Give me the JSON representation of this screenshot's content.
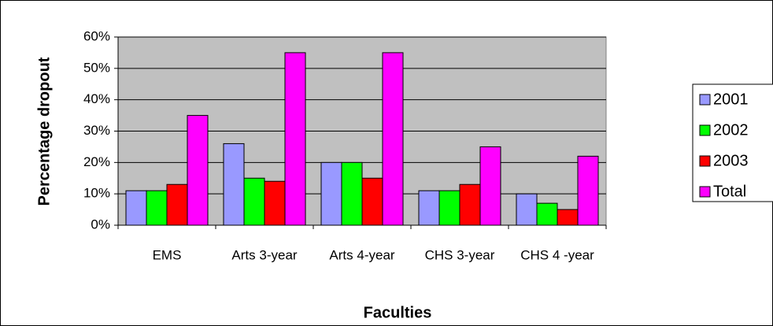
{
  "chart_data": {
    "type": "bar",
    "categories": [
      "EMS",
      "Arts 3-year",
      "Arts 4-year",
      "CHS 3-year",
      "CHS 4 -year"
    ],
    "series": [
      {
        "name": "2001",
        "color": "#9999ff",
        "values": [
          11,
          26,
          20,
          11,
          10
        ]
      },
      {
        "name": "2002",
        "color": "#00ff00",
        "values": [
          11,
          15,
          20,
          11,
          7
        ]
      },
      {
        "name": "2003",
        "color": "#ff0000",
        "values": [
          13,
          14,
          15,
          13,
          5
        ]
      },
      {
        "name": "Total",
        "color": "#ff00ff",
        "values": [
          35,
          55,
          55,
          25,
          22
        ]
      }
    ],
    "x_label": "Faculties",
    "y_label": "Percentage dropout",
    "ylim": [
      0,
      60
    ],
    "yticks": [
      {
        "value": 0,
        "label": "0%"
      },
      {
        "value": 10,
        "label": "10%"
      },
      {
        "value": 20,
        "label": "20%"
      },
      {
        "value": 30,
        "label": "30%"
      },
      {
        "value": 40,
        "label": "40%"
      },
      {
        "value": 50,
        "label": "50%"
      },
      {
        "value": 60,
        "label": "60%"
      }
    ],
    "grid": true,
    "legend": "right"
  }
}
